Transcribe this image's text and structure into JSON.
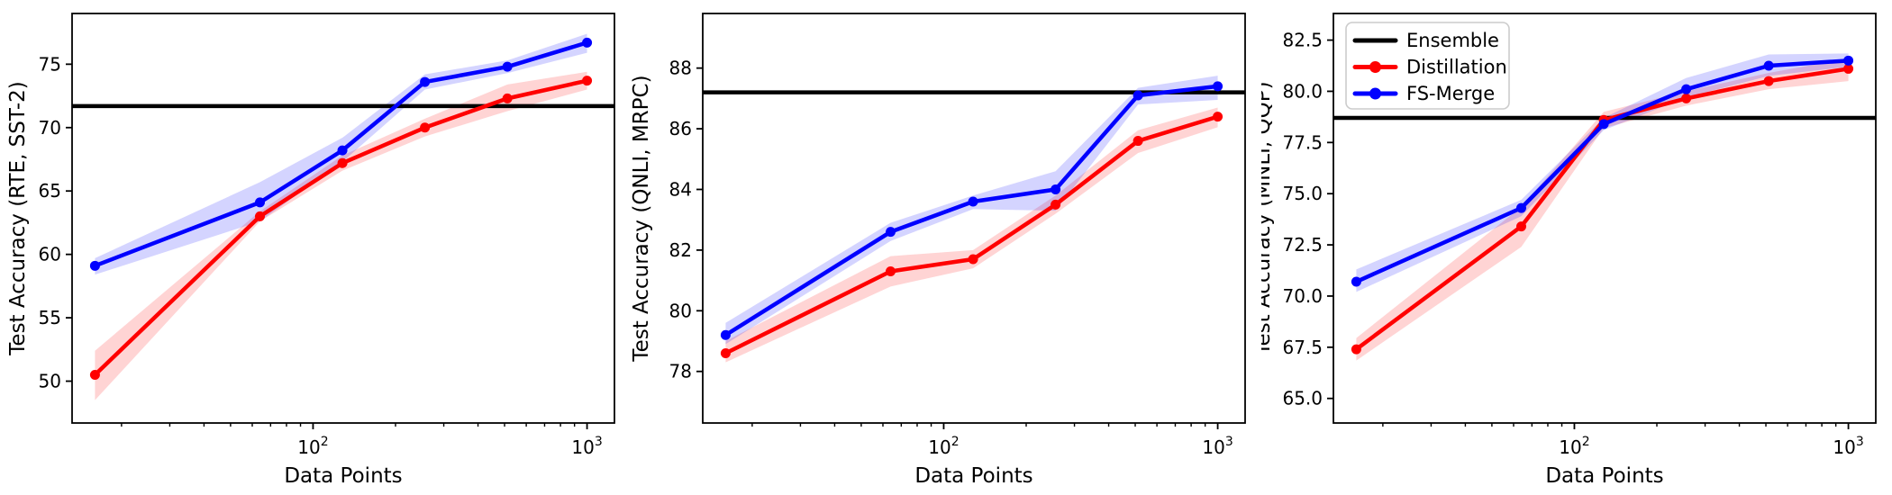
{
  "figure": {
    "xlabel": "Data Points",
    "background": "#ffffff"
  },
  "legend": {
    "position": "upper-left-of-third-plot",
    "entries": [
      {
        "label": "Ensemble",
        "color": "#000000",
        "marker": false
      },
      {
        "label": "Distillation",
        "color": "#ff0000",
        "marker": true
      },
      {
        "label": "FS-Merge",
        "color": "#0000ff",
        "marker": true
      }
    ]
  },
  "chart_data": [
    {
      "type": "line",
      "title": "",
      "xlabel": "Data Points",
      "ylabel": "Test Accuracy (RTE, SST-2)",
      "xscale": "log",
      "grid": false,
      "x": [
        16,
        64,
        128,
        256,
        512,
        1000
      ],
      "xlim": [
        13.2,
        1259
      ],
      "ylim": [
        46.7,
        79.0
      ],
      "yticks": [
        50,
        55,
        60,
        65,
        70,
        75
      ],
      "ytick_labels": [
        "50",
        "55",
        "60",
        "65",
        "70",
        "75"
      ],
      "xtick_labels": [
        {
          "base": "10",
          "exp": "2",
          "value": 100
        },
        {
          "base": "10",
          "exp": "3",
          "value": 1000
        }
      ],
      "ensemble_value": 71.7,
      "series": [
        {
          "name": "Distillation",
          "color": "#ff0000",
          "values": [
            50.5,
            63.0,
            67.2,
            70.0,
            72.3,
            73.7
          ],
          "band_low": [
            48.5,
            62.6,
            66.6,
            69.3,
            71.3,
            73.0
          ],
          "band_high": [
            52.4,
            63.4,
            67.8,
            70.7,
            73.4,
            74.4
          ]
        },
        {
          "name": "FS-Merge",
          "color": "#0000ff",
          "values": [
            59.1,
            64.1,
            68.2,
            73.6,
            74.8,
            76.7
          ],
          "band_low": [
            58.4,
            62.6,
            67.3,
            73.0,
            74.3,
            75.9
          ],
          "band_high": [
            59.7,
            65.7,
            69.2,
            74.2,
            75.3,
            77.4
          ]
        }
      ]
    },
    {
      "type": "line",
      "title": "",
      "xlabel": "Data Points",
      "ylabel": "Test Accuracy (QNLI, MRPC)",
      "xscale": "log",
      "grid": false,
      "x": [
        16,
        64,
        128,
        256,
        512,
        1000
      ],
      "xlim": [
        13.2,
        1259
      ],
      "ylim": [
        76.3,
        89.8
      ],
      "yticks": [
        78,
        80,
        82,
        84,
        86,
        88
      ],
      "ytick_labels": [
        "78",
        "80",
        "82",
        "84",
        "86",
        "88"
      ],
      "xtick_labels": [
        {
          "base": "10",
          "exp": "2",
          "value": 100
        },
        {
          "base": "10",
          "exp": "3",
          "value": 1000
        }
      ],
      "ensemble_value": 87.2,
      "series": [
        {
          "name": "Distillation",
          "color": "#ff0000",
          "values": [
            78.6,
            81.3,
            81.7,
            83.5,
            85.6,
            86.4
          ],
          "band_low": [
            78.3,
            80.8,
            81.4,
            83.2,
            85.2,
            86.05
          ],
          "band_high": [
            79.0,
            81.8,
            82.0,
            83.8,
            85.95,
            86.7
          ]
        },
        {
          "name": "FS-Merge",
          "color": "#0000ff",
          "values": [
            79.2,
            82.6,
            83.6,
            84.0,
            87.1,
            87.4
          ],
          "band_low": [
            78.9,
            82.3,
            83.35,
            83.3,
            86.8,
            86.95
          ],
          "band_high": [
            79.6,
            82.9,
            83.8,
            84.6,
            87.35,
            87.75
          ]
        }
      ]
    },
    {
      "type": "line",
      "title": "",
      "xlabel": "Data Points",
      "ylabel": "Test Accuracy (MNLI, QQP)",
      "xscale": "log",
      "grid": false,
      "legend": true,
      "x": [
        16,
        64,
        128,
        256,
        512,
        1000
      ],
      "xlim": [
        13.2,
        1259
      ],
      "ylim": [
        63.8,
        83.8
      ],
      "yticks": [
        65.0,
        67.5,
        70.0,
        72.5,
        75.0,
        77.5,
        80.0,
        82.5
      ],
      "ytick_labels": [
        "65.0",
        "67.5",
        "70.0",
        "72.5",
        "75.0",
        "77.5",
        "80.0",
        "82.5"
      ],
      "xtick_labels": [
        {
          "base": "10",
          "exp": "2",
          "value": 100
        },
        {
          "base": "10",
          "exp": "3",
          "value": 1000
        }
      ],
      "ensemble_value": 78.7,
      "series": [
        {
          "name": "Distillation",
          "color": "#ff0000",
          "values": [
            67.4,
            73.4,
            78.6,
            79.65,
            80.5,
            81.1
          ],
          "band_low": [
            66.85,
            72.4,
            78.2,
            79.3,
            80.1,
            80.5
          ],
          "band_high": [
            67.95,
            74.35,
            79.0,
            80.0,
            80.9,
            81.6
          ]
        },
        {
          "name": "FS-Merge",
          "color": "#0000ff",
          "values": [
            70.7,
            74.3,
            78.4,
            80.1,
            81.25,
            81.5
          ],
          "band_low": [
            70.2,
            73.9,
            78.1,
            79.7,
            80.75,
            81.2
          ],
          "band_high": [
            71.3,
            74.7,
            78.7,
            80.65,
            81.8,
            81.85
          ]
        }
      ]
    }
  ]
}
